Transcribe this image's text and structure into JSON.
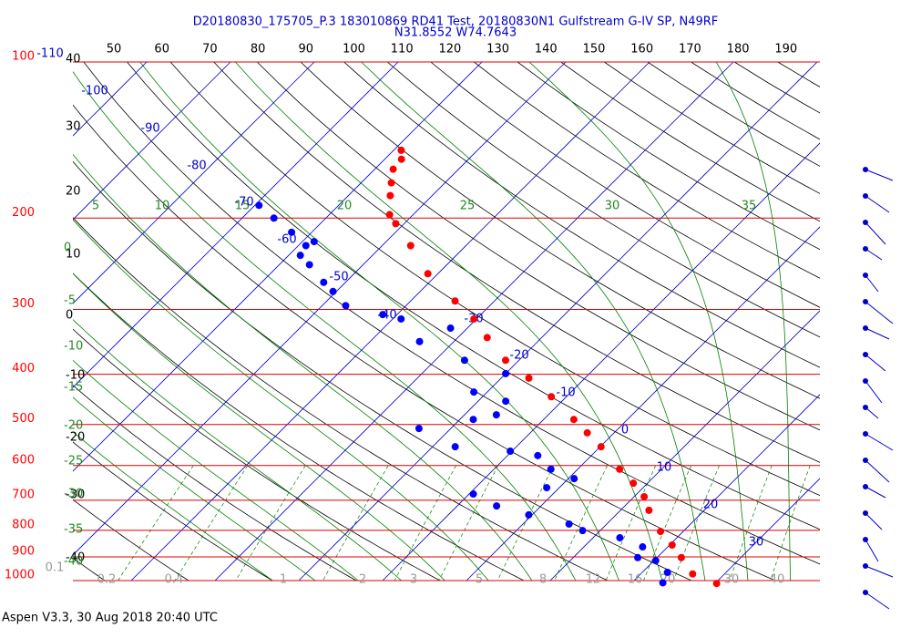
{
  "title": "D20180830_175705_P.3 183010869 RD41 Test, 20180830N1 Gulfstream G-IV SP, N49RF",
  "subtitle": "N31.8552 W74.7643",
  "footer": "Aspen V3.3, 30 Aug 2018  20:40 UTC",
  "chart_data": {
    "type": "skewt",
    "pressure_levels": [
      100,
      200,
      300,
      400,
      500,
      600,
      700,
      800,
      900,
      1000
    ],
    "isotherm_labels": [
      -110,
      -100,
      -90,
      -80,
      -70,
      -60,
      -50,
      -40,
      -30,
      -20,
      -10,
      0,
      10,
      20,
      30
    ],
    "top_labels": [
      50,
      60,
      70,
      80,
      90,
      100,
      110,
      120,
      130,
      140,
      150,
      160,
      170,
      180,
      190
    ],
    "left_labels": [
      40,
      30,
      20,
      10,
      0,
      -10,
      -20,
      -30,
      -40
    ],
    "adiabat_labels": [
      5,
      10,
      15,
      20,
      25,
      30,
      35
    ],
    "green_left_labels": [
      0,
      -5,
      -10,
      -15,
      -20,
      -25,
      -30,
      -35,
      -40
    ],
    "mixing_ratio_labels": [
      0.1,
      0.2,
      0.4,
      1,
      2,
      3,
      5,
      8,
      12,
      16,
      20,
      30,
      40
    ],
    "temperature": {
      "color": "#ff0000",
      "pressure": [
        1013,
        971,
        903,
        854,
        804,
        732,
        689,
        649,
        610,
        552,
        519,
        489,
        442,
        407,
        376,
        340,
        313,
        289,
        256,
        226,
        205,
        197,
        181,
        171,
        161,
        154,
        148
      ],
      "values": [
        30.2,
        26.2,
        22.9,
        20.3,
        17.3,
        13.4,
        11.2,
        8.3,
        5.0,
        0.1,
        -3.2,
        -6.4,
        -11.8,
        -16.7,
        -21.6,
        -26.5,
        -30.3,
        -34.7,
        -41.2,
        -46.6,
        -51.0,
        -52.8,
        -55.0,
        -56.4,
        -57.8,
        -58.0,
        -59.1
      ]
    },
    "dewpoint": {
      "color": "#0000ff",
      "pressure": [
        1010,
        964,
        915,
        903,
        861,
        827,
        801,
        778,
        747,
        718,
        681,
        662,
        636,
        610,
        574,
        563,
        552,
        509,
        489,
        479,
        451,
        433,
        399,
        376,
        346,
        326,
        313,
        307,
        295,
        277,
        266,
        246,
        236,
        226,
        222,
        213,
        200,
        189
      ],
      "values": [
        23.7,
        23.0,
        20.2,
        17.7,
        17.0,
        13.2,
        7.9,
        5.5,
        -0.4,
        -5.3,
        -9.5,
        -1.5,
        0.7,
        -3.2,
        -6.4,
        -10.2,
        -17.3,
        -23.8,
        -18.4,
        -16.2,
        -16.7,
        -21.6,
        -20.0,
        -26.5,
        -34.1,
        -32.0,
        -39.0,
        -41.7,
        -47.2,
        -50.4,
        -52.6,
        -56.4,
        -58.6,
        -59.1,
        -58.6,
        -62.4,
        -66.2,
        -69.5
      ]
    }
  }
}
